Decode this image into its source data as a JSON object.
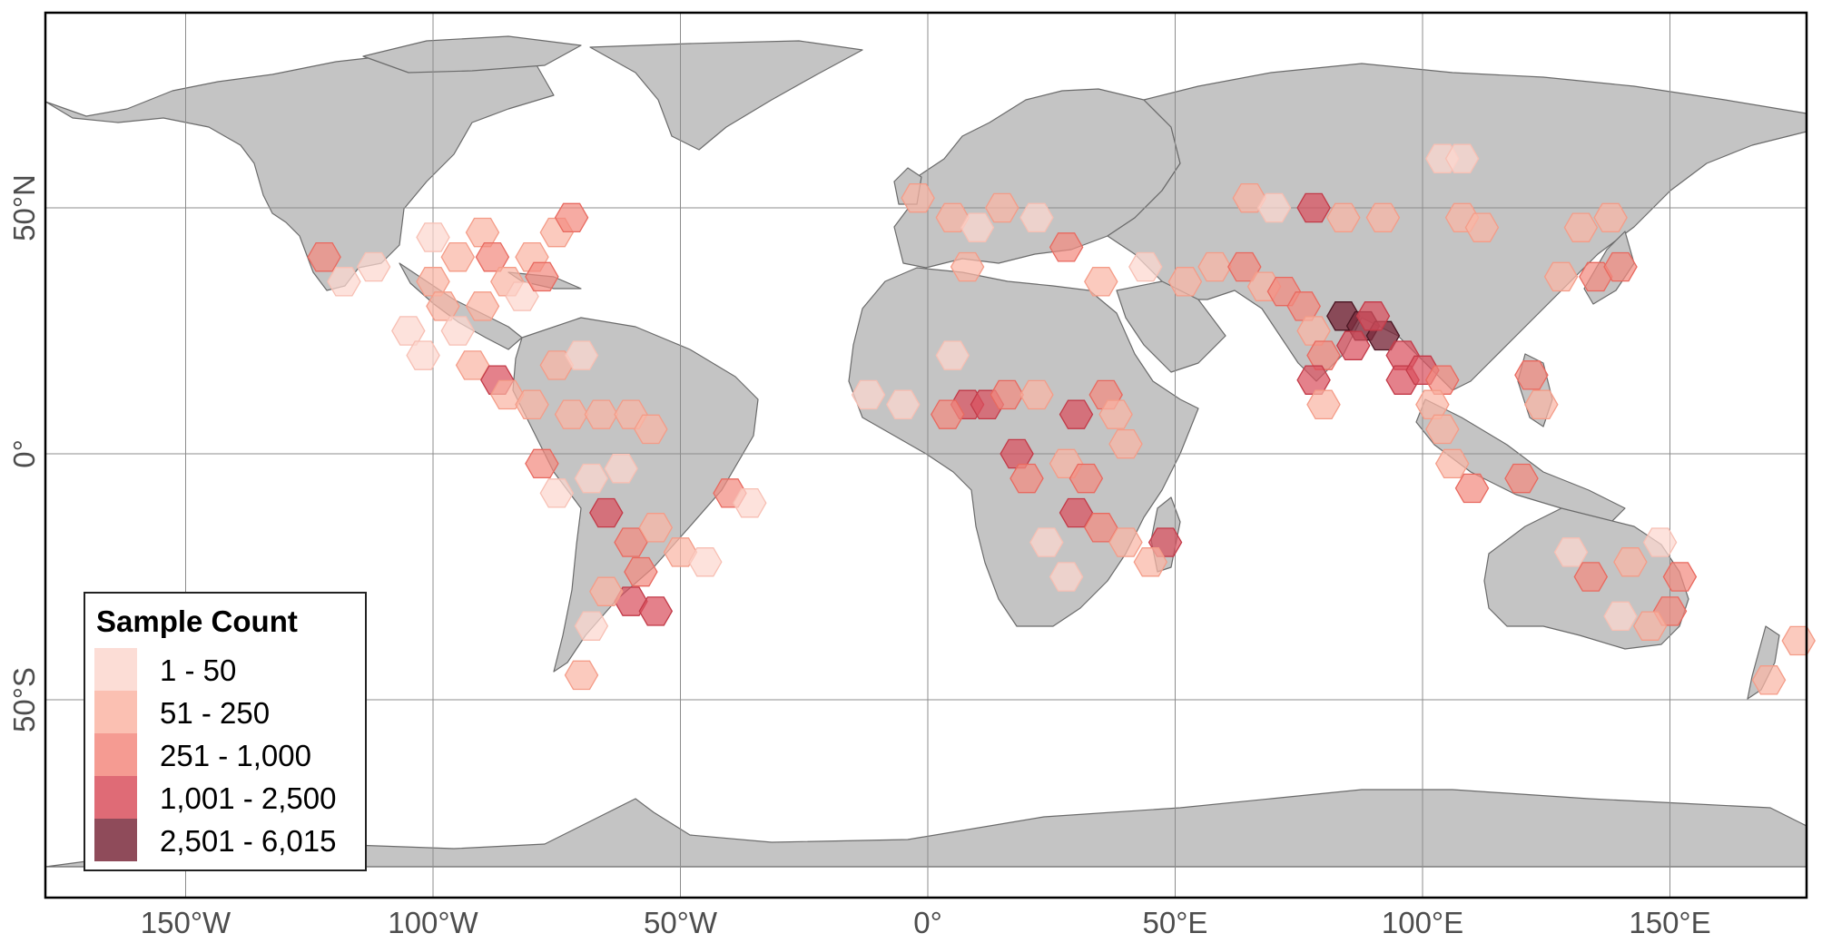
{
  "map": {
    "type": "hexbin-world-map",
    "projection": "equirectangular",
    "lon_range": [
      -180,
      180
    ],
    "lat_range": [
      -90,
      90
    ],
    "grid": true,
    "x_ticks": [
      {
        "value": -150,
        "label": "150°W"
      },
      {
        "value": -100,
        "label": "100°W"
      },
      {
        "value": -50,
        "label": "50°W"
      },
      {
        "value": 0,
        "label": "0°"
      },
      {
        "value": 50,
        "label": "50°E"
      },
      {
        "value": 100,
        "label": "100°E"
      },
      {
        "value": 150,
        "label": "150°E"
      }
    ],
    "y_ticks": [
      {
        "value": 50,
        "label": "50°N"
      },
      {
        "value": 0,
        "label": "0°"
      },
      {
        "value": -50,
        "label": "50°S"
      }
    ],
    "colors": {
      "land": "#c4c4c4",
      "border": "#6b6b6b",
      "ocean": "#ffffff",
      "classes": [
        "#fcd7cf",
        "#fab5a5",
        "#f38a7f",
        "#d9515e",
        "#7b2c3d"
      ]
    }
  },
  "legend": {
    "title": "Sample Count",
    "position": "bottom-left",
    "classes": [
      {
        "label": "1 - 50",
        "color": "#fcd7cf"
      },
      {
        "label": "51 - 250",
        "color": "#fab5a5"
      },
      {
        "label": "251 - 1,000",
        "color": "#f38a7f"
      },
      {
        "label": "1,001 - 2,500",
        "color": "#d9515e"
      },
      {
        "label": "2,501 - 6,015",
        "color": "#7b2c3d"
      }
    ]
  },
  "hexbins": [
    {
      "lon": -122,
      "lat": 40,
      "c": 2
    },
    {
      "lon": -118,
      "lat": 35,
      "c": 0
    },
    {
      "lon": -112,
      "lat": 38,
      "c": 0
    },
    {
      "lon": -100,
      "lat": 44,
      "c": 0
    },
    {
      "lon": -95,
      "lat": 40,
      "c": 1
    },
    {
      "lon": -90,
      "lat": 45,
      "c": 1
    },
    {
      "lon": -88,
      "lat": 40,
      "c": 2
    },
    {
      "lon": -85,
      "lat": 35,
      "c": 1
    },
    {
      "lon": -80,
      "lat": 40,
      "c": 1
    },
    {
      "lon": -75,
      "lat": 45,
      "c": 1
    },
    {
      "lon": -72,
      "lat": 48,
      "c": 2
    },
    {
      "lon": -90,
      "lat": 30,
      "c": 1
    },
    {
      "lon": -82,
      "lat": 32,
      "c": 0
    },
    {
      "lon": -78,
      "lat": 36,
      "c": 2
    },
    {
      "lon": -100,
      "lat": 35,
      "c": 1
    },
    {
      "lon": -98,
      "lat": 30,
      "c": 1
    },
    {
      "lon": -105,
      "lat": 25,
      "c": 0
    },
    {
      "lon": -102,
      "lat": 20,
      "c": 0
    },
    {
      "lon": -95,
      "lat": 25,
      "c": 0
    },
    {
      "lon": -92,
      "lat": 18,
      "c": 1
    },
    {
      "lon": -87,
      "lat": 15,
      "c": 3
    },
    {
      "lon": -85,
      "lat": 12,
      "c": 1
    },
    {
      "lon": -80,
      "lat": 10,
      "c": 1
    },
    {
      "lon": -75,
      "lat": 18,
      "c": 1
    },
    {
      "lon": -70,
      "lat": 20,
      "c": 0
    },
    {
      "lon": -72,
      "lat": 8,
      "c": 1
    },
    {
      "lon": -66,
      "lat": 8,
      "c": 1
    },
    {
      "lon": -60,
      "lat": 8,
      "c": 1
    },
    {
      "lon": -56,
      "lat": 5,
      "c": 1
    },
    {
      "lon": -78,
      "lat": -2,
      "c": 2
    },
    {
      "lon": -75,
      "lat": -8,
      "c": 0
    },
    {
      "lon": -68,
      "lat": -5,
      "c": 0
    },
    {
      "lon": -62,
      "lat": -3,
      "c": 0
    },
    {
      "lon": -65,
      "lat": -12,
      "c": 3
    },
    {
      "lon": -60,
      "lat": -18,
      "c": 2
    },
    {
      "lon": -55,
      "lat": -15,
      "c": 1
    },
    {
      "lon": -50,
      "lat": -20,
      "c": 1
    },
    {
      "lon": -45,
      "lat": -22,
      "c": 0
    },
    {
      "lon": -58,
      "lat": -24,
      "c": 2
    },
    {
      "lon": -60,
      "lat": -30,
      "c": 3
    },
    {
      "lon": -55,
      "lat": -32,
      "c": 3
    },
    {
      "lon": -65,
      "lat": -28,
      "c": 1
    },
    {
      "lon": -68,
      "lat": -35,
      "c": 0
    },
    {
      "lon": -70,
      "lat": -45,
      "c": 1
    },
    {
      "lon": -40,
      "lat": -8,
      "c": 2
    },
    {
      "lon": -36,
      "lat": -10,
      "c": 0
    },
    {
      "lon": 8,
      "lat": 10,
      "c": 3
    },
    {
      "lon": 12,
      "lat": 10,
      "c": 3
    },
    {
      "lon": 4,
      "lat": 8,
      "c": 2
    },
    {
      "lon": 16,
      "lat": 12,
      "c": 2
    },
    {
      "lon": 22,
      "lat": 12,
      "c": 1
    },
    {
      "lon": 30,
      "lat": 8,
      "c": 3
    },
    {
      "lon": 36,
      "lat": 12,
      "c": 2
    },
    {
      "lon": 38,
      "lat": 8,
      "c": 1
    },
    {
      "lon": 40,
      "lat": 2,
      "c": 1
    },
    {
      "lon": 18,
      "lat": 0,
      "c": 3
    },
    {
      "lon": 20,
      "lat": -5,
      "c": 2
    },
    {
      "lon": 28,
      "lat": -2,
      "c": 1
    },
    {
      "lon": 32,
      "lat": -5,
      "c": 2
    },
    {
      "lon": 30,
      "lat": -12,
      "c": 3
    },
    {
      "lon": 35,
      "lat": -15,
      "c": 2
    },
    {
      "lon": 40,
      "lat": -18,
      "c": 1
    },
    {
      "lon": 48,
      "lat": -18,
      "c": 3
    },
    {
      "lon": 45,
      "lat": -22,
      "c": 1
    },
    {
      "lon": 28,
      "lat": -25,
      "c": 0
    },
    {
      "lon": 24,
      "lat": -18,
      "c": 0
    },
    {
      "lon": -12,
      "lat": 12,
      "c": 0
    },
    {
      "lon": -5,
      "lat": 10,
      "c": 0
    },
    {
      "lon": 5,
      "lat": 20,
      "c": 0
    },
    {
      "lon": -2,
      "lat": 52,
      "c": 1
    },
    {
      "lon": 5,
      "lat": 48,
      "c": 1
    },
    {
      "lon": 10,
      "lat": 46,
      "c": 0
    },
    {
      "lon": 15,
      "lat": 50,
      "c": 1
    },
    {
      "lon": 22,
      "lat": 48,
      "c": 0
    },
    {
      "lon": 28,
      "lat": 42,
      "c": 2
    },
    {
      "lon": 8,
      "lat": 38,
      "c": 1
    },
    {
      "lon": 35,
      "lat": 35,
      "c": 1
    },
    {
      "lon": 44,
      "lat": 38,
      "c": 0
    },
    {
      "lon": 52,
      "lat": 35,
      "c": 1
    },
    {
      "lon": 58,
      "lat": 38,
      "c": 1
    },
    {
      "lon": 64,
      "lat": 38,
      "c": 2
    },
    {
      "lon": 68,
      "lat": 34,
      "c": 1
    },
    {
      "lon": 72,
      "lat": 33,
      "c": 2
    },
    {
      "lon": 76,
      "lat": 30,
      "c": 2
    },
    {
      "lon": 78,
      "lat": 25,
      "c": 1
    },
    {
      "lon": 80,
      "lat": 20,
      "c": 2
    },
    {
      "lon": 78,
      "lat": 15,
      "c": 3
    },
    {
      "lon": 80,
      "lat": 10,
      "c": 1
    },
    {
      "lon": 84,
      "lat": 28,
      "c": 4
    },
    {
      "lon": 88,
      "lat": 26,
      "c": 4
    },
    {
      "lon": 92,
      "lat": 24,
      "c": 4
    },
    {
      "lon": 86,
      "lat": 22,
      "c": 3
    },
    {
      "lon": 90,
      "lat": 28,
      "c": 3
    },
    {
      "lon": 96,
      "lat": 20,
      "c": 3
    },
    {
      "lon": 96,
      "lat": 15,
      "c": 3
    },
    {
      "lon": 100,
      "lat": 17,
      "c": 3
    },
    {
      "lon": 104,
      "lat": 15,
      "c": 2
    },
    {
      "lon": 102,
      "lat": 10,
      "c": 1
    },
    {
      "lon": 104,
      "lat": 5,
      "c": 1
    },
    {
      "lon": 106,
      "lat": -2,
      "c": 1
    },
    {
      "lon": 110,
      "lat": -7,
      "c": 2
    },
    {
      "lon": 122,
      "lat": 16,
      "c": 2
    },
    {
      "lon": 124,
      "lat": 10,
      "c": 1
    },
    {
      "lon": 120,
      "lat": -5,
      "c": 2
    },
    {
      "lon": 135,
      "lat": 36,
      "c": 2
    },
    {
      "lon": 140,
      "lat": 38,
      "c": 2
    },
    {
      "lon": 128,
      "lat": 36,
      "c": 1
    },
    {
      "lon": 132,
      "lat": 46,
      "c": 1
    },
    {
      "lon": 138,
      "lat": 48,
      "c": 1
    },
    {
      "lon": 104,
      "lat": 60,
      "c": 0
    },
    {
      "lon": 108,
      "lat": 60,
      "c": 0
    },
    {
      "lon": 65,
      "lat": 52,
      "c": 1
    },
    {
      "lon": 70,
      "lat": 50,
      "c": 0
    },
    {
      "lon": 78,
      "lat": 50,
      "c": 3
    },
    {
      "lon": 84,
      "lat": 48,
      "c": 1
    },
    {
      "lon": 92,
      "lat": 48,
      "c": 1
    },
    {
      "lon": 108,
      "lat": 48,
      "c": 1
    },
    {
      "lon": 112,
      "lat": 46,
      "c": 1
    },
    {
      "lon": 130,
      "lat": -20,
      "c": 0
    },
    {
      "lon": 134,
      "lat": -25,
      "c": 2
    },
    {
      "lon": 142,
      "lat": -22,
      "c": 1
    },
    {
      "lon": 148,
      "lat": -18,
      "c": 0
    },
    {
      "lon": 152,
      "lat": -25,
      "c": 2
    },
    {
      "lon": 150,
      "lat": -32,
      "c": 2
    },
    {
      "lon": 146,
      "lat": -35,
      "c": 1
    },
    {
      "lon": 140,
      "lat": -33,
      "c": 0
    },
    {
      "lon": 176,
      "lat": -38,
      "c": 1
    },
    {
      "lon": 170,
      "lat": -46,
      "c": 1
    }
  ]
}
